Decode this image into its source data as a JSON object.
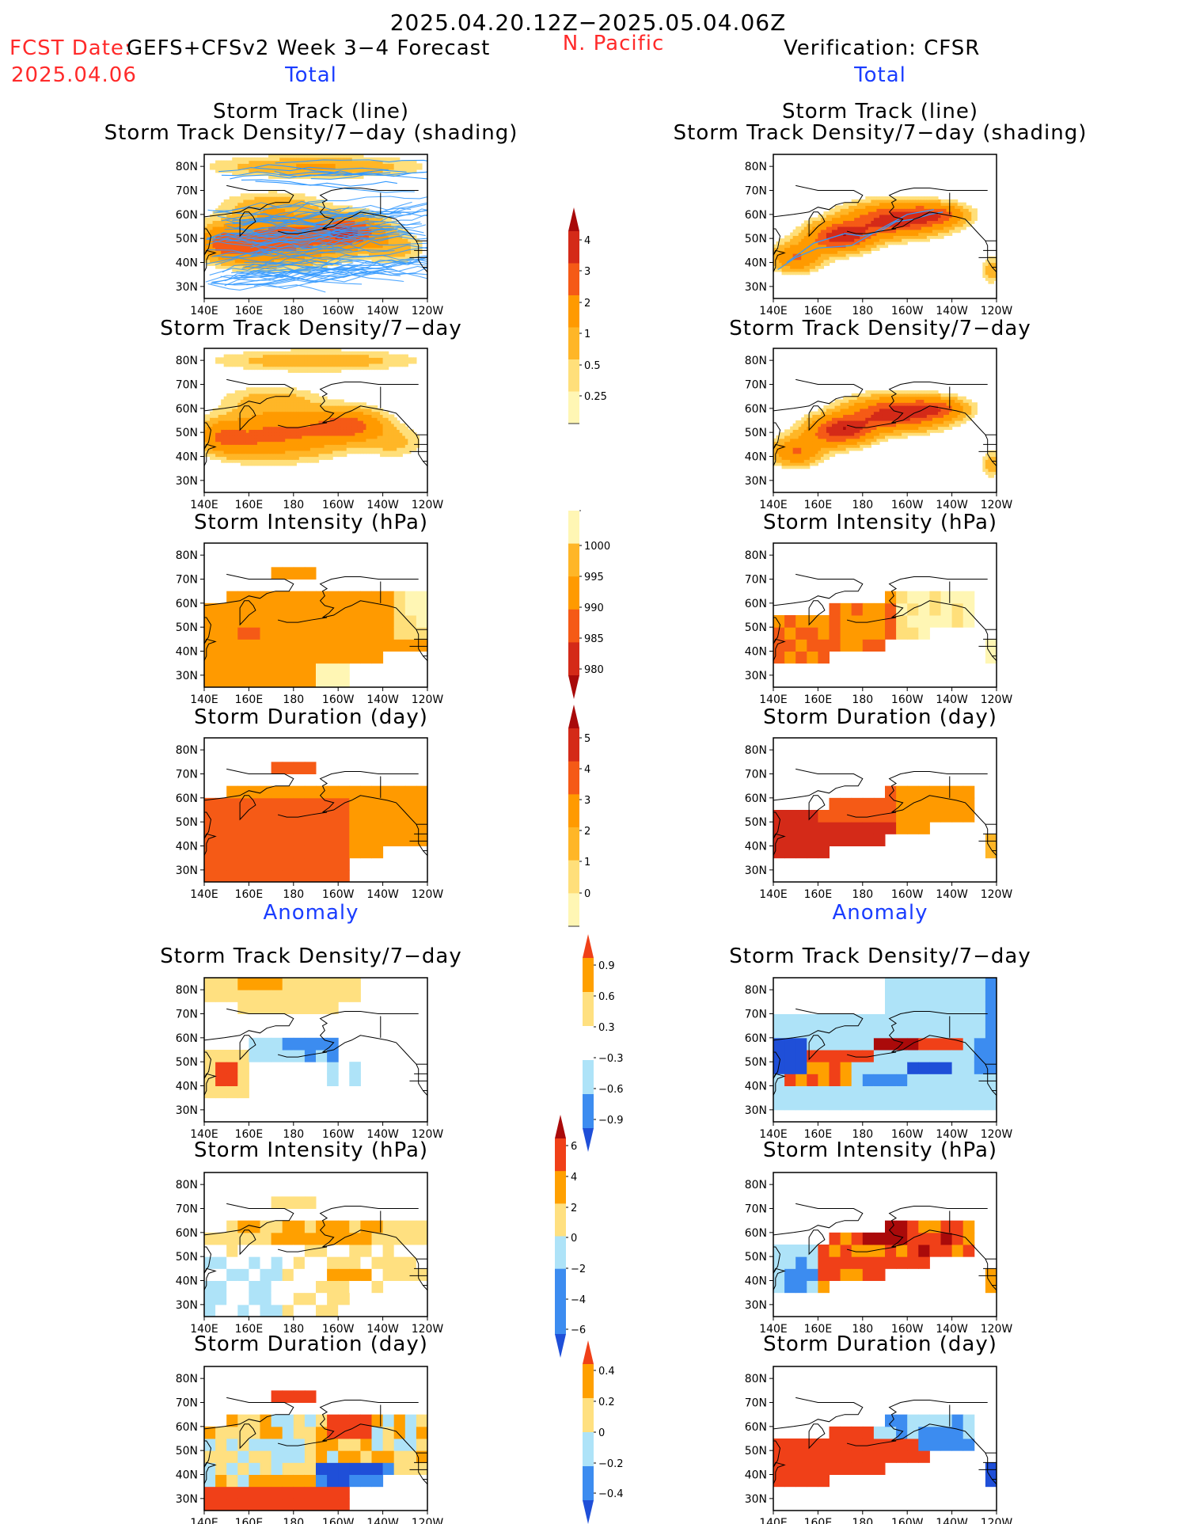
{
  "header": {
    "period": "2025.04.20.12Z−2025.05.04.06Z",
    "fcst_label": "FCST Date:",
    "model": "GEFS+CFSv2 Week 3−4 Forecast",
    "region": "N. Pacific",
    "fcst_date": "2025.04.06",
    "verification": "Verification: CFSR",
    "total_left": "Total",
    "total_right": "Total",
    "anomaly_left": "Anomaly",
    "anomaly_right": "Anomaly"
  },
  "titles": {
    "track_line": "Storm Track (line)",
    "track_shading": "Storm Track Density/7−day (shading)",
    "density": "Storm Track Density/7−day",
    "intensity": "Storm Intensity (hPa)",
    "duration": "Storm Duration (day)"
  },
  "axes": {
    "lat": [
      "80N",
      "70N",
      "60N",
      "50N",
      "40N",
      "30N"
    ],
    "lon": [
      "140E",
      "160E",
      "180",
      "160W",
      "140W",
      "120W"
    ]
  },
  "colorbars": {
    "density_total": [
      "4",
      "3",
      "2",
      "1",
      "0.5",
      "0.25"
    ],
    "intensity_total": [
      "1000",
      "995",
      "990",
      "985",
      "980"
    ],
    "duration_total": [
      "5",
      "4",
      "3",
      "2",
      "1",
      "0"
    ],
    "density_anom": [
      "0.9",
      "0.6",
      "0.3",
      "−0.3",
      "−0.6",
      "−0.9"
    ],
    "intensity_anom": [
      "6",
      "4",
      "2",
      "0",
      "−2",
      "−4",
      "−6"
    ],
    "duration_anom": [
      "0.4",
      "0.2",
      "0",
      "−0.2",
      "−0.4"
    ]
  },
  "chart_data": [
    {
      "type": "heatmap",
      "panel": "forecast-storm-track",
      "title": "Storm Track (line) / Storm Track Density/7−day (shading)",
      "xlim": [
        140,
        240
      ],
      "ylim": [
        25,
        85
      ],
      "xlabel": "",
      "ylabel": ""
    },
    {
      "type": "heatmap",
      "panel": "verification-storm-track",
      "title": "Storm Track (line) / Storm Track Density/7−day (shading)",
      "xlim": [
        140,
        240
      ],
      "ylim": [
        25,
        85
      ]
    },
    {
      "type": "heatmap",
      "panel": "forecast-density",
      "title": "Storm Track Density/7−day",
      "xlim": [
        140,
        240
      ],
      "ylim": [
        25,
        85
      ]
    },
    {
      "type": "heatmap",
      "panel": "verification-density",
      "title": "Storm Track Density/7−day",
      "xlim": [
        140,
        240
      ],
      "ylim": [
        25,
        85
      ]
    },
    {
      "type": "heatmap",
      "panel": "forecast-intensity",
      "title": "Storm Intensity (hPa)",
      "xlim": [
        140,
        240
      ],
      "ylim": [
        25,
        85
      ]
    },
    {
      "type": "heatmap",
      "panel": "verification-intensity",
      "title": "Storm Intensity (hPa)",
      "xlim": [
        140,
        240
      ],
      "ylim": [
        25,
        85
      ]
    },
    {
      "type": "heatmap",
      "panel": "forecast-duration",
      "title": "Storm Duration (day)",
      "xlim": [
        140,
        240
      ],
      "ylim": [
        25,
        85
      ]
    },
    {
      "type": "heatmap",
      "panel": "verification-duration",
      "title": "Storm Duration (day)",
      "xlim": [
        140,
        240
      ],
      "ylim": [
        25,
        85
      ]
    },
    {
      "type": "heatmap",
      "panel": "forecast-density-anomaly",
      "title": "Storm Track Density/7−day",
      "xlim": [
        140,
        240
      ],
      "ylim": [
        25,
        85
      ]
    },
    {
      "type": "heatmap",
      "panel": "verification-density-anomaly",
      "title": "Storm Track Density/7−day",
      "xlim": [
        140,
        240
      ],
      "ylim": [
        25,
        85
      ]
    },
    {
      "type": "heatmap",
      "panel": "forecast-intensity-anomaly",
      "title": "Storm Intensity (hPa)",
      "xlim": [
        140,
        240
      ],
      "ylim": [
        25,
        85
      ]
    },
    {
      "type": "heatmap",
      "panel": "verification-intensity-anomaly",
      "title": "Storm Intensity (hPa)",
      "xlim": [
        140,
        240
      ],
      "ylim": [
        25,
        85
      ]
    },
    {
      "type": "heatmap",
      "panel": "forecast-duration-anomaly",
      "title": "Storm Duration (day)",
      "xlim": [
        140,
        240
      ],
      "ylim": [
        25,
        85
      ]
    },
    {
      "type": "heatmap",
      "panel": "verification-duration-anomaly",
      "title": "Storm Duration (day)",
      "xlim": [
        140,
        240
      ],
      "ylim": [
        25,
        85
      ]
    }
  ],
  "colors": {
    "tot": [
      "#fff6b4",
      "#ffdf7a",
      "#ffb627",
      "#ff9a00",
      "#f55a16",
      "#d42a18",
      "#a80a0a"
    ],
    "anom": [
      "#1f4fd8",
      "#3c8cf0",
      "#aee3f8",
      "#ffffff",
      "#ffe080",
      "#ffa000",
      "#f04018",
      "#aa0a0a"
    ],
    "track_line": "#3399ff"
  }
}
